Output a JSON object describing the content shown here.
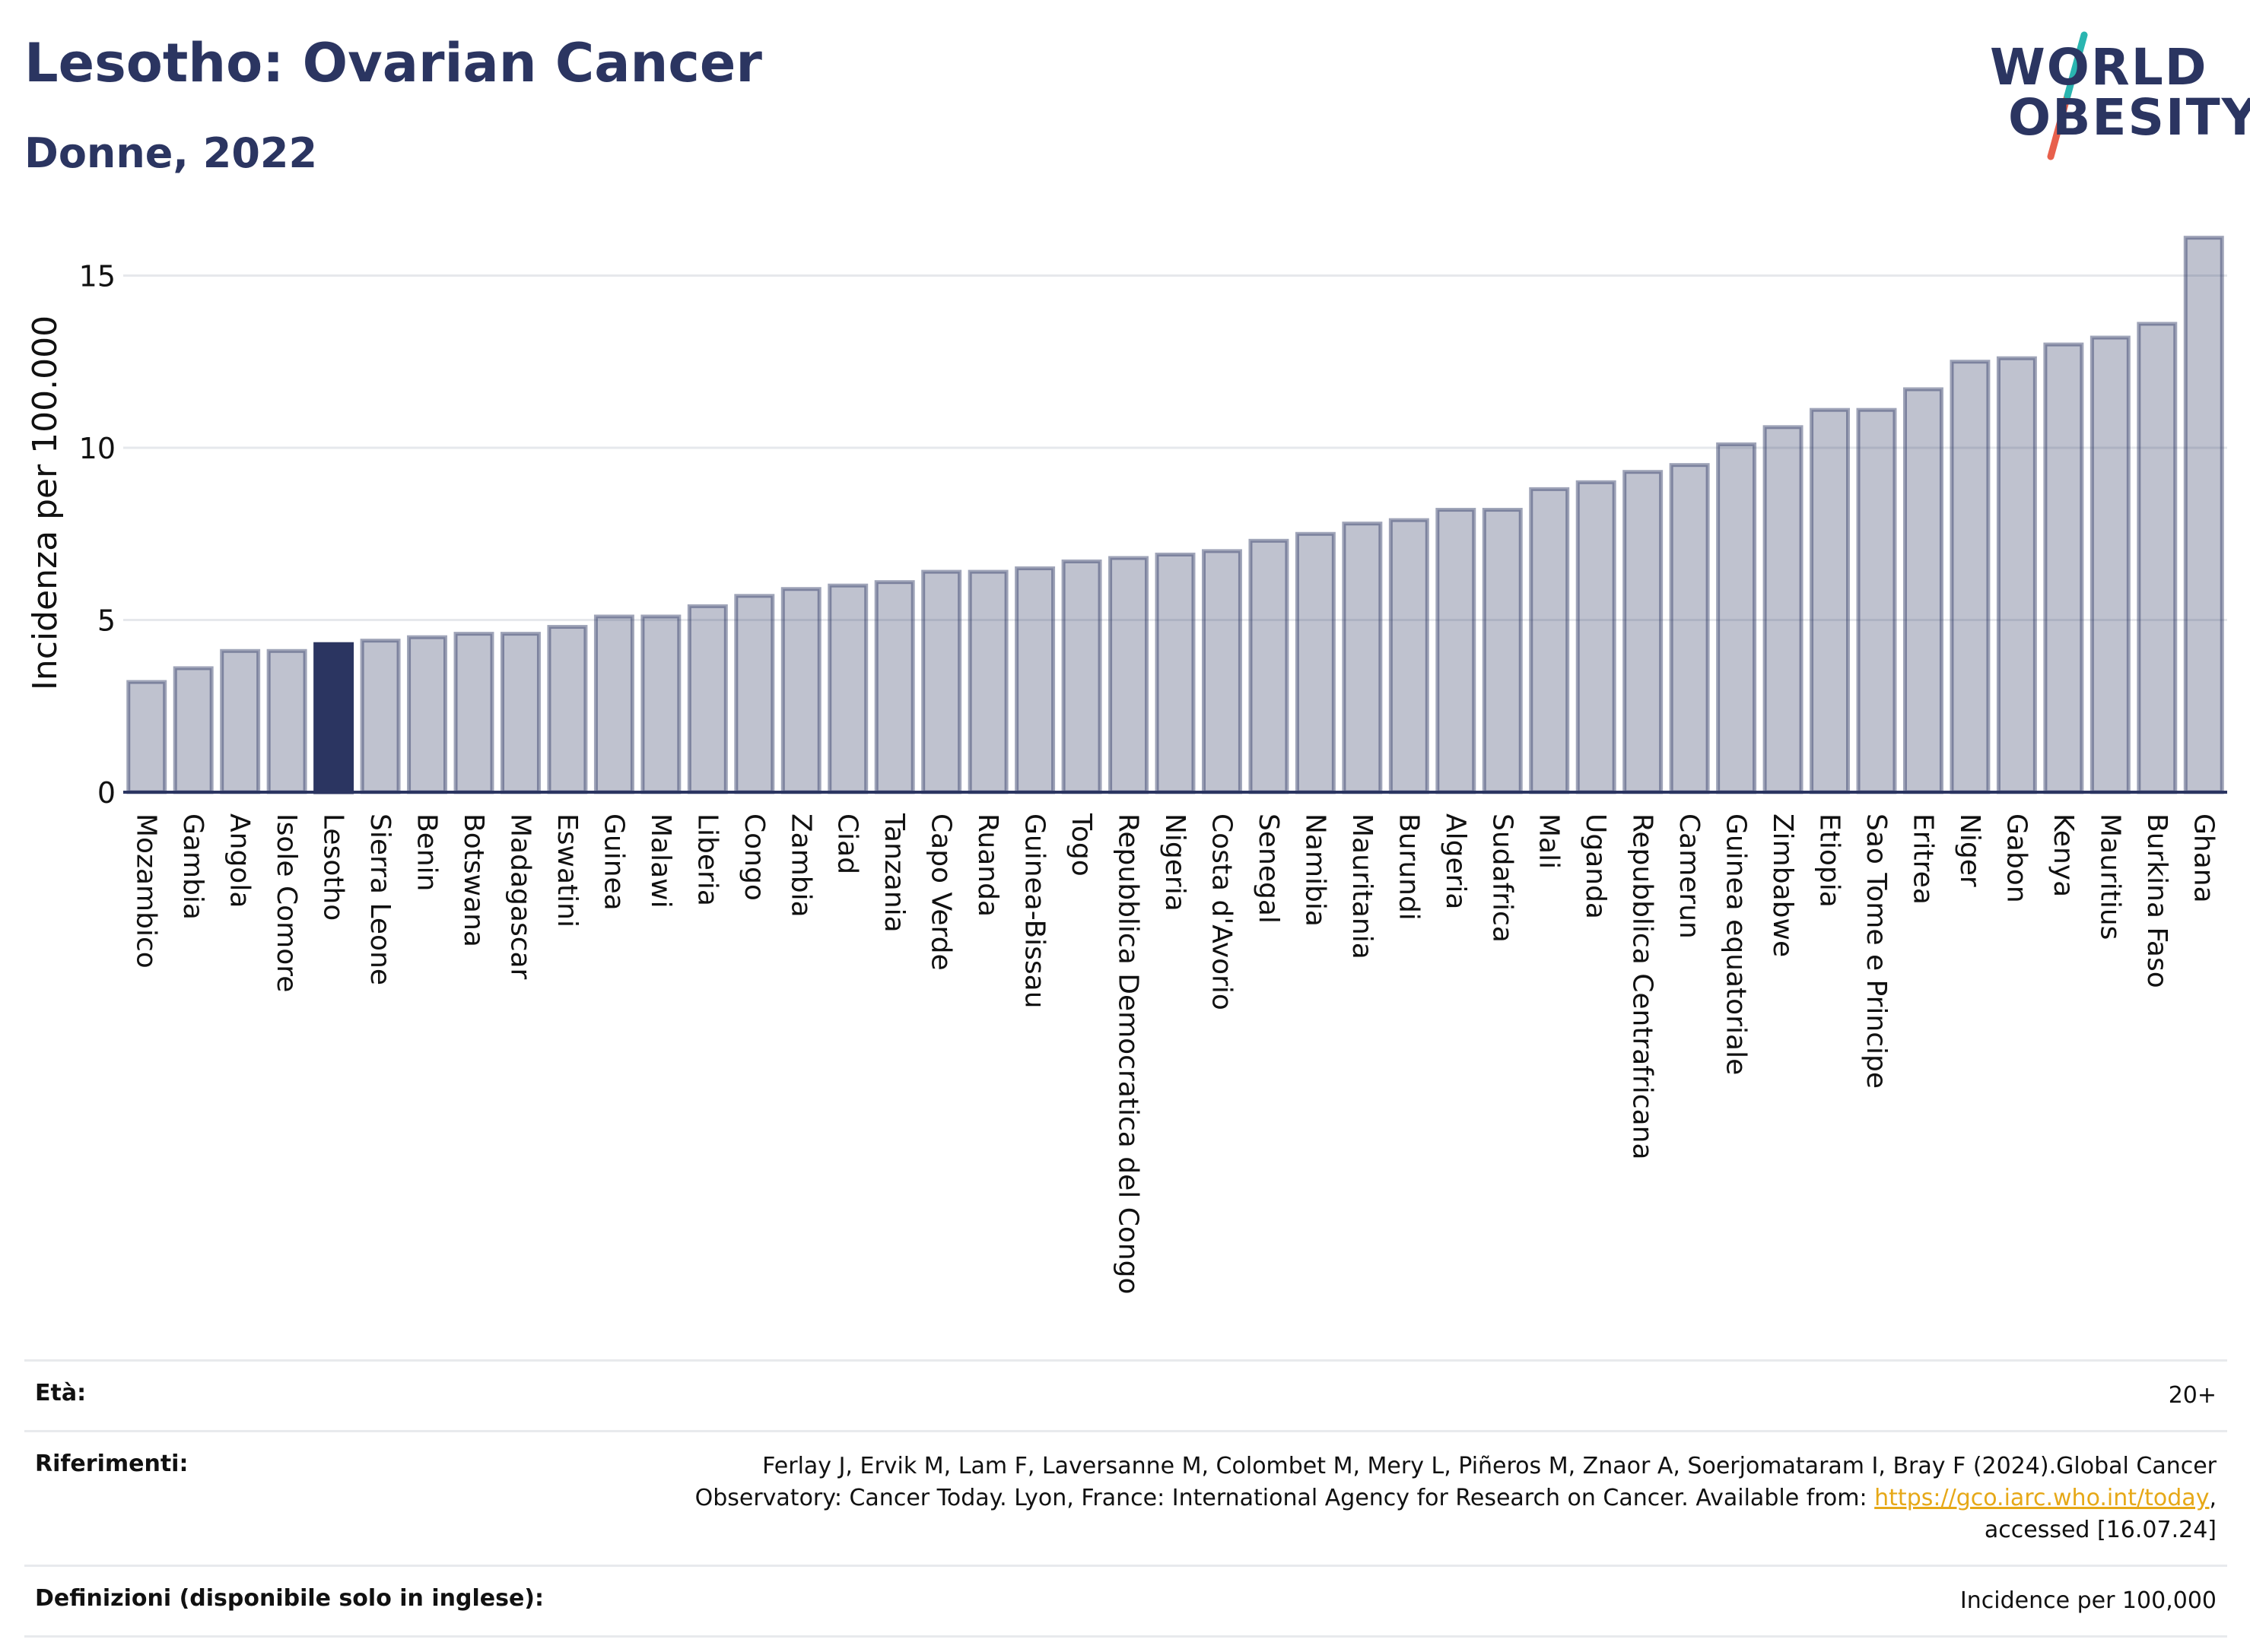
{
  "header": {
    "title": "Lesotho: Ovarian Cancer",
    "subtitle": "Donne, 2022"
  },
  "logo": {
    "line1": "WORLD",
    "line2": "OBESITY",
    "colors": {
      "text": "#2b3561",
      "slash_top": "#2ab5b0",
      "slash_bottom": "#e8604c"
    }
  },
  "chart_data": {
    "type": "bar",
    "ylabel": "Incidenza per 100.000",
    "xlabel": "",
    "ylim": [
      0,
      16.6
    ],
    "yticks": [
      0,
      5,
      10,
      15
    ],
    "grid": true,
    "highlight": "Lesotho",
    "colors": {
      "bar": "#2b3561",
      "bar_opacity": 0.3,
      "highlight": "#2b3561"
    },
    "categories": [
      "Mozambico",
      "Gambia",
      "Angola",
      "Isole Comore",
      "Lesotho",
      "Sierra Leone",
      "Benin",
      "Botswana",
      "Madagascar",
      "Eswatini",
      "Guinea",
      "Malawi",
      "Liberia",
      "Congo",
      "Zambia",
      "Ciad",
      "Tanzania",
      "Capo Verde",
      "Ruanda",
      "Guinea-Bissau",
      "Togo",
      "Repubblica Democratica del Congo",
      "Nigeria",
      "Costa d'Avorio",
      "Senegal",
      "Namibia",
      "Mauritania",
      "Burundi",
      "Algeria",
      "Sudafrica",
      "Mali",
      "Uganda",
      "Repubblica Centrafricana",
      "Camerun",
      "Guinea equatoriale",
      "Zimbabwe",
      "Etiopia",
      "Sao Tome e Principe",
      "Eritrea",
      "Niger",
      "Gabon",
      "Kenya",
      "Mauritius",
      "Burkina Faso",
      "Ghana"
    ],
    "values": [
      3.2,
      3.6,
      4.1,
      4.1,
      4.3,
      4.4,
      4.5,
      4.6,
      4.6,
      4.8,
      5.1,
      5.1,
      5.4,
      5.7,
      5.9,
      6.0,
      6.1,
      6.4,
      6.4,
      6.5,
      6.7,
      6.8,
      6.9,
      7.0,
      7.3,
      7.5,
      7.8,
      7.9,
      8.2,
      8.2,
      8.8,
      9.0,
      9.3,
      9.5,
      10.1,
      10.6,
      11.1,
      11.1,
      11.7,
      12.5,
      12.6,
      13.0,
      13.2,
      13.6,
      16.1
    ]
  },
  "footer": {
    "age_label": "Età:",
    "age_value": "20+",
    "ref_label": "Riferimenti:",
    "ref_text": "Ferlay J, Ervik M, Lam F, Laversanne M, Colombet M, Mery L, Piñeros M, Znaor A, Soerjomataram I, Bray F (2024).Global Cancer Observatory: Cancer Today. Lyon, France: International Agency for Research on Cancer. Available from:",
    "ref_link": "https://gco.iarc.who.int/today",
    "ref_tail": ", accessed [16.07.24]",
    "def_label": "Definizioni (disponibile solo in inglese):",
    "def_value": "Incidence per 100,000"
  }
}
